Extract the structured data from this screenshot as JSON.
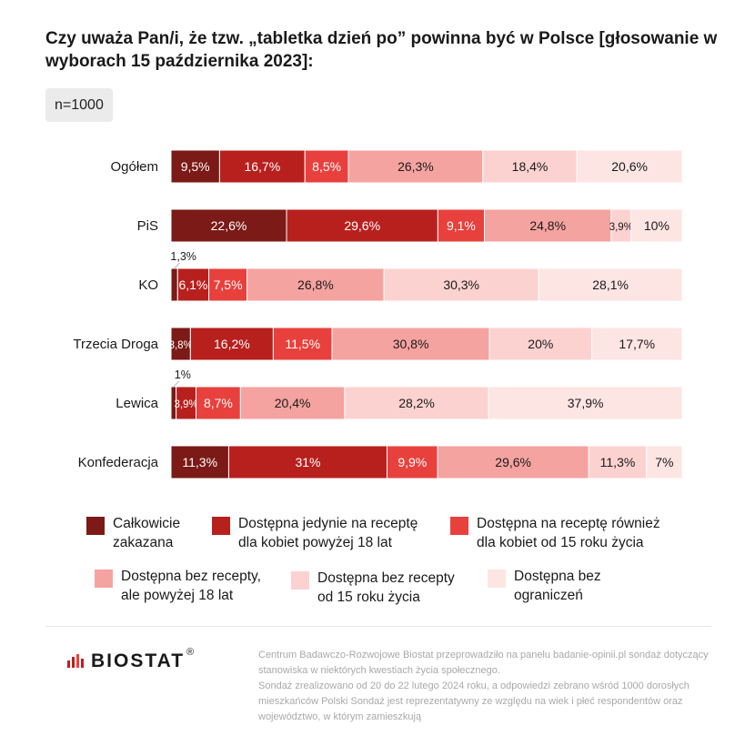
{
  "title": "Czy uważa Pan/i, że tzw. „tabletka dzień po” powinna być w Polsce [głosowanie w wyborach 15 października 2023]:",
  "sample": "n=1000",
  "colors": [
    "#7b1a16",
    "#b8201e",
    "#e8413d",
    "#f5a3a0",
    "#fcd2d0",
    "#fde5e3"
  ],
  "chart_data": {
    "type": "bar",
    "orientation": "horizontal-stacked-100",
    "categories": [
      "Ogółem",
      "PiS",
      "KO",
      "Trzecia Droga",
      "Lewica",
      "Konfederacja"
    ],
    "series": [
      {
        "name": "Całkowicie zakazana",
        "values": [
          9.5,
          22.6,
          1.3,
          3.8,
          1,
          11.3
        ],
        "labels": [
          "9,5%",
          "22,6%",
          "1,3%",
          "3,8%",
          "1%",
          "11,3%"
        ]
      },
      {
        "name": "Dostępna jedynie na receptę dla kobiet powyżej 18 lat",
        "values": [
          16.7,
          29.6,
          6.1,
          16.2,
          3.9,
          31
        ],
        "labels": [
          "16,7%",
          "29,6%",
          "6,1%",
          "16,2%",
          "3,9%",
          "31%"
        ]
      },
      {
        "name": "Dostępna na receptę również dla kobiet od 15 roku życia",
        "values": [
          8.5,
          9.1,
          7.5,
          11.5,
          8.7,
          9.9
        ],
        "labels": [
          "8,5%",
          "9,1%",
          "7,5%",
          "11,5%",
          "8,7%",
          "9,9%"
        ]
      },
      {
        "name": "Dostępna bez recepty, ale powyżej 18 lat",
        "values": [
          26.3,
          24.8,
          26.8,
          30.8,
          20.4,
          29.6
        ],
        "labels": [
          "26,3%",
          "24,8%",
          "26,8%",
          "30,8%",
          "20,4%",
          "29,6%"
        ]
      },
      {
        "name": "Dostępna bez recepty od 15 roku życia",
        "values": [
          18.4,
          3.9,
          30.3,
          20,
          28.2,
          11.3
        ],
        "labels": [
          "18,4%",
          "3,9%",
          "30,3%",
          "20%",
          "28,2%",
          "11,3%"
        ]
      },
      {
        "name": "Dostępna bez ograniczeń",
        "values": [
          20.6,
          10,
          28.1,
          17.7,
          37.9,
          7
        ],
        "labels": [
          "20,6%",
          "10%",
          "28,1%",
          "17,7%",
          "37,9%",
          "7%"
        ]
      }
    ],
    "legend_position": "bottom",
    "grid": false
  },
  "legend": [
    {
      "label": "Całkowicie\nzakazana"
    },
    {
      "label": "Dostępna jedynie na receptę\ndla kobiet powyżej 18 lat"
    },
    {
      "label": "Dostępna na receptę również\ndla kobiet od 15 roku życia"
    },
    {
      "label": "Dostępna bez recepty,\nale powyżej 18 lat"
    },
    {
      "label": "Dostępna bez recepty\nod 15 roku życia"
    },
    {
      "label": "Dostępna bez\nograniczeń"
    }
  ],
  "logo": {
    "text": "BIOSTAT",
    "reg": "®"
  },
  "footnote": [
    "Centrum Badawczo-Rozwojowe Biostat przeprowadziło na panelu badanie-opinii.pl sondaż dotyczący stanowiska w niektórych kwestiach życia społecznego.",
    "Sondaż zrealizowano od 20 do 22 lutego 2024 roku, a odpowiedzi zebrano wśród 1000 dorosłych mieszkańców Polski Sondaż jest reprezentatywny ze względu na wiek i płeć respondentów oraz województwo, w którym zamieszkują"
  ]
}
